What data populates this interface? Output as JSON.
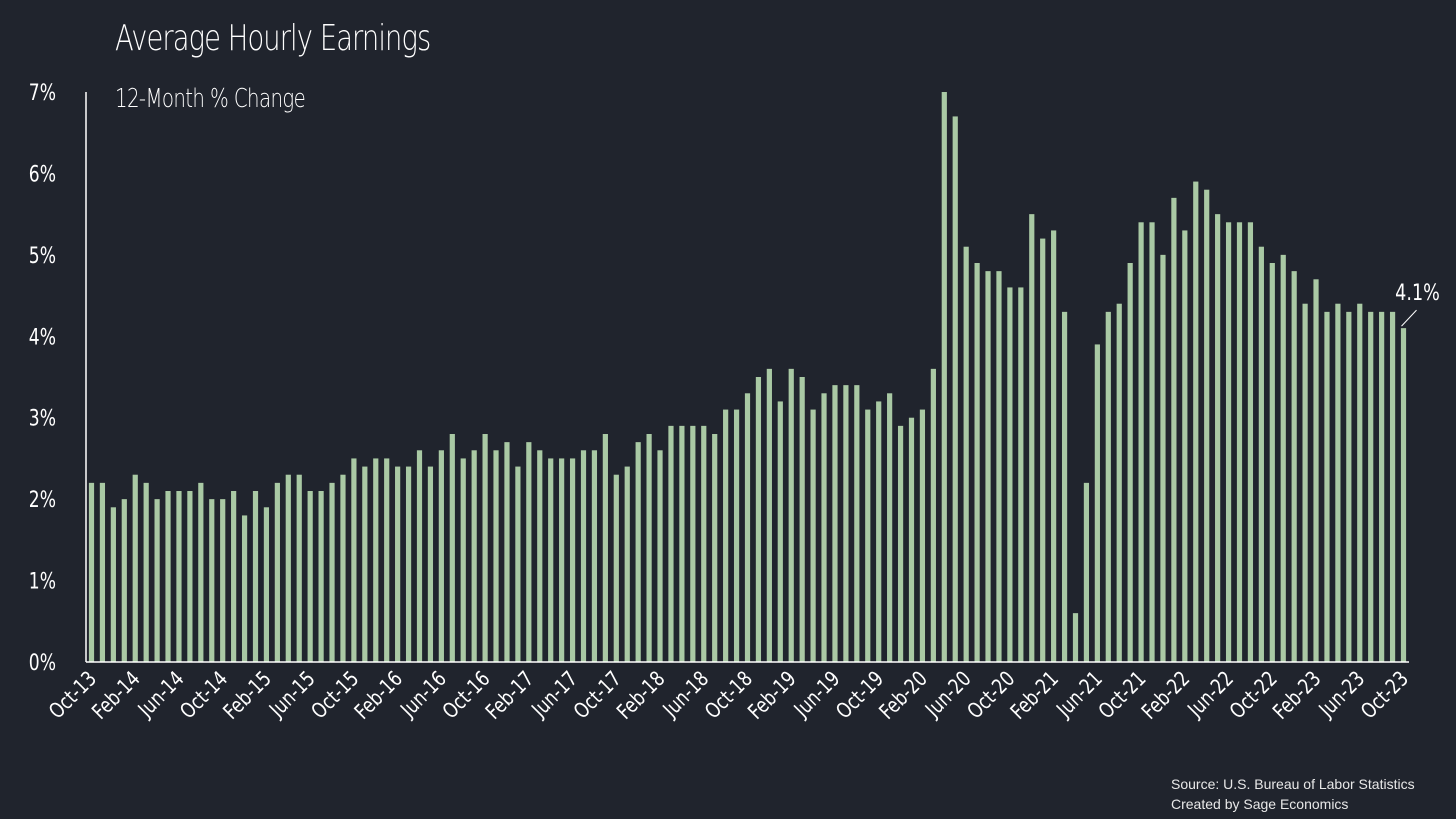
{
  "header": {
    "title": "Average Hourly Earnings",
    "subtitle": "12-Month % Change"
  },
  "footer": {
    "source_line1": "Source: U.S. Bureau of Labor Statistics",
    "source_line2": "Created by Sage Economics"
  },
  "colors": {
    "background": "#20242d",
    "bar": "#a9c9a4",
    "axis": "#ffffff",
    "text": "#ffffff"
  },
  "chart_data": {
    "type": "bar",
    "title": "Average Hourly Earnings",
    "subtitle": "12-Month % Change",
    "xlabel": "",
    "ylabel": "",
    "ylim": [
      0,
      7
    ],
    "y_tick_labels": [
      "0%",
      "1%",
      "2%",
      "3%",
      "4%",
      "5%",
      "6%",
      "7%"
    ],
    "y_tick_values": [
      0,
      1,
      2,
      3,
      4,
      5,
      6,
      7
    ],
    "grid": false,
    "legend": "none",
    "start_month": "Oct-13",
    "end_month": "Oct-23",
    "x_tick_labels": [
      "Oct-13",
      "Feb-14",
      "Jun-14",
      "Oct-14",
      "Feb-15",
      "Jun-15",
      "Oct-15",
      "Feb-16",
      "Jun-16",
      "Oct-16",
      "Feb-17",
      "Jun-17",
      "Oct-17",
      "Feb-18",
      "Jun-18",
      "Oct-18",
      "Feb-19",
      "Jun-19",
      "Oct-19",
      "Feb-20",
      "Jun-20",
      "Oct-20",
      "Feb-21",
      "Jun-21",
      "Oct-21",
      "Feb-22",
      "Jun-22",
      "Oct-22",
      "Feb-23",
      "Jun-23",
      "Oct-23"
    ],
    "values": [
      2.2,
      2.2,
      1.9,
      2.0,
      2.3,
      2.2,
      2.0,
      2.1,
      2.1,
      2.1,
      2.2,
      2.0,
      2.0,
      2.1,
      1.8,
      2.1,
      1.9,
      2.2,
      2.3,
      2.3,
      2.1,
      2.1,
      2.2,
      2.3,
      2.5,
      2.4,
      2.5,
      2.5,
      2.4,
      2.4,
      2.6,
      2.4,
      2.6,
      2.8,
      2.5,
      2.6,
      2.8,
      2.6,
      2.7,
      2.4,
      2.7,
      2.6,
      2.5,
      2.5,
      2.5,
      2.6,
      2.6,
      2.8,
      2.3,
      2.4,
      2.7,
      2.8,
      2.6,
      2.9,
      2.9,
      2.9,
      2.9,
      2.8,
      3.1,
      3.1,
      3.3,
      3.5,
      3.6,
      3.2,
      3.6,
      3.5,
      3.1,
      3.3,
      3.4,
      3.4,
      3.4,
      3.1,
      3.2,
      3.3,
      2.9,
      3.0,
      3.1,
      3.6,
      7.0,
      6.7,
      5.1,
      4.9,
      4.8,
      4.8,
      4.6,
      4.6,
      5.5,
      5.2,
      5.3,
      4.3,
      0.6,
      2.2,
      3.9,
      4.3,
      4.4,
      4.9,
      5.4,
      5.4,
      5.0,
      5.7,
      5.3,
      5.9,
      5.8,
      5.5,
      5.4,
      5.4,
      5.4,
      5.1,
      4.9,
      5.0,
      4.8,
      4.4,
      4.7,
      4.3,
      4.4,
      4.3,
      4.4,
      4.3,
      4.3,
      4.3,
      4.1
    ],
    "annotations": [
      {
        "text": "4.1%",
        "point": "Oct-23",
        "value": 4.1
      }
    ]
  }
}
